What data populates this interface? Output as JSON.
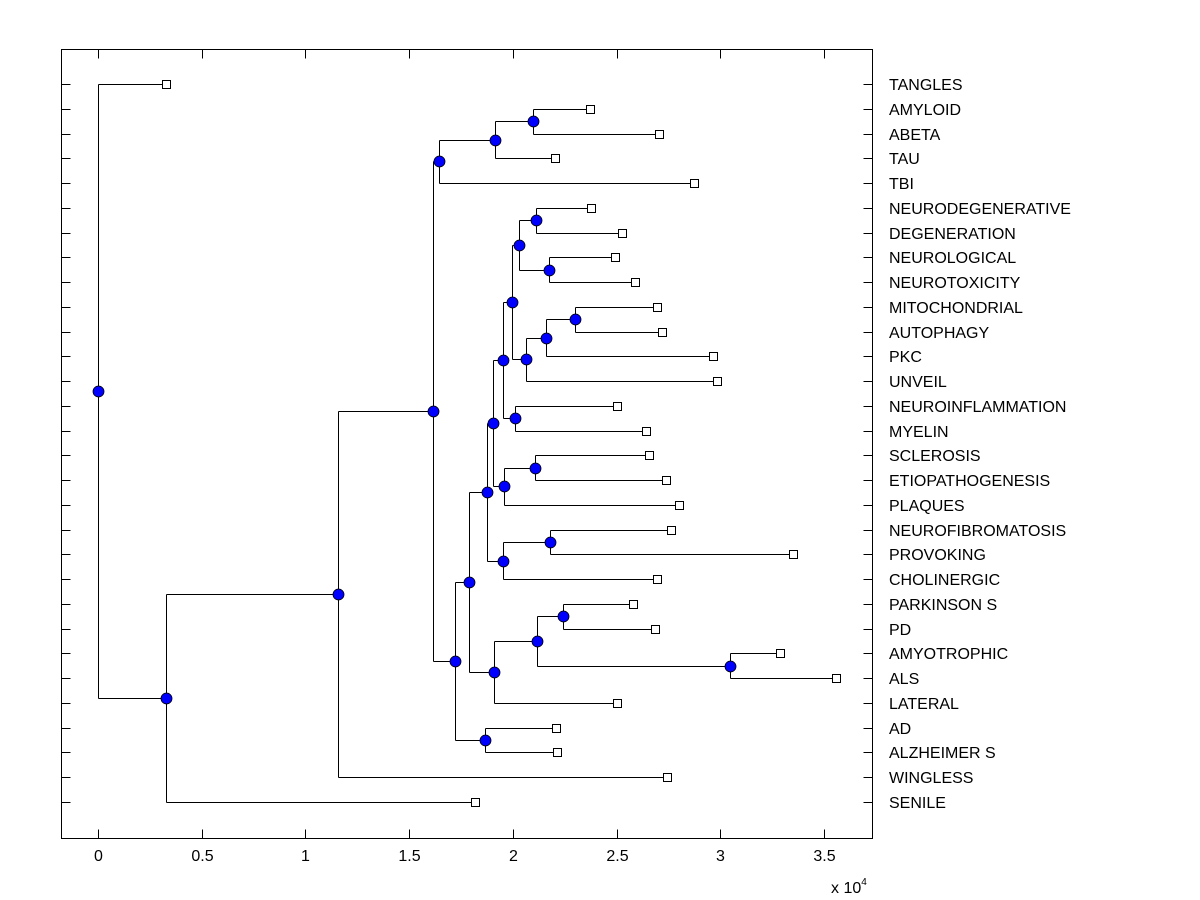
{
  "chart_data": {
    "type": "dendrogram",
    "title": "",
    "xlabel": "",
    "ylabel": "",
    "x_multiplier": "x 10",
    "x_multiplier_exponent": "4",
    "xlim": [
      -18000,
      37500
    ],
    "xticks": [
      0,
      5000,
      10000,
      15000,
      20000,
      25000,
      30000,
      35000
    ],
    "xtick_labels": [
      "0",
      "0.5",
      "1",
      "1.5",
      "2",
      "2.5",
      "3",
      "3.5"
    ],
    "grid": false,
    "node_color": "#0000ff",
    "leaves": [
      {
        "label": "TANGLES",
        "x": 3280
      },
      {
        "label": "AMYLOID",
        "x": 23720
      },
      {
        "label": "ABETA",
        "x": 27060
      },
      {
        "label": "TAU",
        "x": 22030
      },
      {
        "label": "TBI",
        "x": 28730
      },
      {
        "label": "NEURODEGENERATIVE",
        "x": 23770
      },
      {
        "label": "DEGENERATION",
        "x": 25260
      },
      {
        "label": "NEUROLOGICAL",
        "x": 24920
      },
      {
        "label": "NEUROTOXICITY",
        "x": 25890
      },
      {
        "label": "MITOCHONDRIAL",
        "x": 26950
      },
      {
        "label": "AUTOPHAGY",
        "x": 27190
      },
      {
        "label": "PKC",
        "x": 29650
      },
      {
        "label": "UNVEIL",
        "x": 29840
      },
      {
        "label": "NEUROINFLAMMATION",
        "x": 25020
      },
      {
        "label": "MYELIN",
        "x": 26420
      },
      {
        "label": "SCLEROSIS",
        "x": 26560
      },
      {
        "label": "ETIOPATHOGENESIS",
        "x": 27380
      },
      {
        "label": "PLAQUES",
        "x": 28010
      },
      {
        "label": "NEUROFIBROMATOSIS",
        "x": 27620
      },
      {
        "label": "PROVOKING",
        "x": 33500
      },
      {
        "label": "CHOLINERGIC",
        "x": 26950
      },
      {
        "label": "PARKINSON S",
        "x": 25790
      },
      {
        "label": "PD",
        "x": 26850
      },
      {
        "label": "AMYOTROPHIC",
        "x": 32880
      },
      {
        "label": "ALS",
        "x": 35580
      },
      {
        "label": "LATERAL",
        "x": 25020
      },
      {
        "label": "AD",
        "x": 22080
      },
      {
        "label": "ALZHEIMER S",
        "x": 22130
      },
      {
        "label": "WINGLESS",
        "x": 27430
      },
      {
        "label": "SENILE",
        "x": 18170
      }
    ],
    "nodes": [
      {
        "id": "n1",
        "x": 20970,
        "children": [
          "L1",
          "L2"
        ]
      },
      {
        "id": "n2",
        "x": 19140,
        "children": [
          "n1",
          "L3"
        ]
      },
      {
        "id": "n3",
        "x": 16440,
        "children": [
          "n2",
          "L4"
        ]
      },
      {
        "id": "n4",
        "x": 21120,
        "children": [
          "L5",
          "L6"
        ]
      },
      {
        "id": "n5",
        "x": 21740,
        "children": [
          "L7",
          "L8"
        ]
      },
      {
        "id": "n6",
        "x": 20300,
        "children": [
          "n4",
          "n5"
        ]
      },
      {
        "id": "n7",
        "x": 23000,
        "children": [
          "L9",
          "L10"
        ]
      },
      {
        "id": "n8",
        "x": 21600,
        "children": [
          "n7",
          "L11"
        ]
      },
      {
        "id": "n9",
        "x": 20630,
        "children": [
          "n8",
          "L12"
        ]
      },
      {
        "id": "n10",
        "x": 19960,
        "children": [
          "n6",
          "n9"
        ]
      },
      {
        "id": "n11",
        "x": 20100,
        "children": [
          "L13",
          "L14"
        ]
      },
      {
        "id": "n12",
        "x": 19520,
        "children": [
          "n10",
          "n11"
        ]
      },
      {
        "id": "n13",
        "x": 21070,
        "children": [
          "L15",
          "L16"
        ]
      },
      {
        "id": "n14",
        "x": 19570,
        "children": [
          "n13",
          "L17"
        ]
      },
      {
        "id": "n15",
        "x": 19040,
        "children": [
          "n12",
          "n14"
        ]
      },
      {
        "id": "n16",
        "x": 21790,
        "children": [
          "L18",
          "L19"
        ]
      },
      {
        "id": "n17",
        "x": 19520,
        "children": [
          "n16",
          "L20"
        ]
      },
      {
        "id": "n18",
        "x": 18750,
        "children": [
          "n15",
          "n17"
        ]
      },
      {
        "id": "n19",
        "x": 22420,
        "children": [
          "L21",
          "L22"
        ]
      },
      {
        "id": "n20",
        "x": 30470,
        "children": [
          "L23",
          "L24"
        ]
      },
      {
        "id": "n21",
        "x": 21160,
        "children": [
          "n19",
          "n20"
        ]
      },
      {
        "id": "n22",
        "x": 19090,
        "children": [
          "n21",
          "L25"
        ]
      },
      {
        "id": "n23",
        "x": 17890,
        "children": [
          "n18",
          "n22"
        ]
      },
      {
        "id": "n24",
        "x": 18660,
        "children": [
          "L26",
          "L27"
        ]
      },
      {
        "id": "n25",
        "x": 17210,
        "children": [
          "n23",
          "n24"
        ]
      },
      {
        "id": "n26",
        "x": 16150,
        "children": [
          "n3",
          "n25"
        ]
      },
      {
        "id": "n27",
        "x": 11570,
        "children": [
          "n26",
          "L28"
        ]
      },
      {
        "id": "n28",
        "x": 3280,
        "children": [
          "n27",
          "L29"
        ]
      },
      {
        "id": "n29",
        "x": 0,
        "children": [
          "L0",
          "n28"
        ]
      }
    ]
  }
}
